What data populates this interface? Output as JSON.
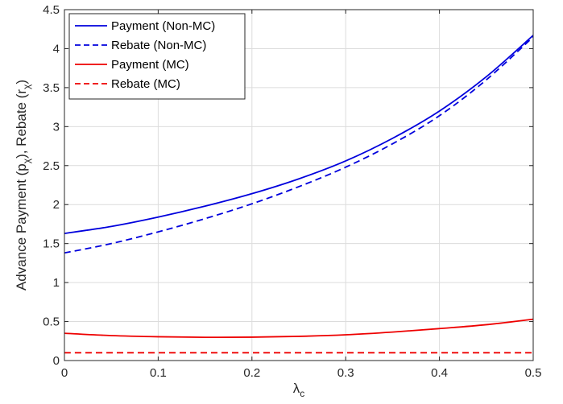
{
  "chart_data": {
    "type": "line",
    "xlabel": "λ",
    "xlabel_sub": "c",
    "ylabel_parts": [
      "Advance Payment (p",
      "χ",
      "), Rebate (r",
      "χ",
      ")"
    ],
    "xlim": [
      0,
      0.5
    ],
    "ylim": [
      0,
      4.5
    ],
    "xticks": [
      0,
      0.1,
      0.2,
      0.3,
      0.4,
      0.5
    ],
    "xtick_labels": [
      "0",
      "0.1",
      "0.2",
      "0.3",
      "0.4",
      "0.5"
    ],
    "yticks": [
      0,
      0.5,
      1,
      1.5,
      2,
      2.5,
      3,
      3.5,
      4,
      4.5
    ],
    "ytick_labels": [
      "0",
      "0.5",
      "1",
      "1.5",
      "2",
      "2.5",
      "3",
      "3.5",
      "4",
      "4.5"
    ],
    "grid": true,
    "legend_position": "top-left",
    "x": [
      0,
      0.05,
      0.1,
      0.15,
      0.2,
      0.25,
      0.3,
      0.35,
      0.4,
      0.45,
      0.5
    ],
    "series": [
      {
        "name": "Payment (Non-MC)",
        "color": "#0000dd",
        "dash": "solid",
        "values": [
          1.63,
          1.72,
          1.84,
          1.98,
          2.14,
          2.33,
          2.56,
          2.85,
          3.2,
          3.64,
          4.17
        ]
      },
      {
        "name": "Rebate (Non-MC)",
        "color": "#0000dd",
        "dash": "dashed",
        "values": [
          1.38,
          1.5,
          1.65,
          1.82,
          2.01,
          2.23,
          2.48,
          2.78,
          3.14,
          3.6,
          4.15
        ]
      },
      {
        "name": "Payment (MC)",
        "color": "#ee0000",
        "dash": "solid",
        "values": [
          0.35,
          0.32,
          0.305,
          0.298,
          0.3,
          0.31,
          0.33,
          0.365,
          0.41,
          0.46,
          0.53
        ]
      },
      {
        "name": "Rebate (MC)",
        "color": "#ee0000",
        "dash": "dashed",
        "values": [
          0.1,
          0.1,
          0.1,
          0.1,
          0.1,
          0.1,
          0.1,
          0.1,
          0.1,
          0.1,
          0.1
        ]
      }
    ]
  }
}
